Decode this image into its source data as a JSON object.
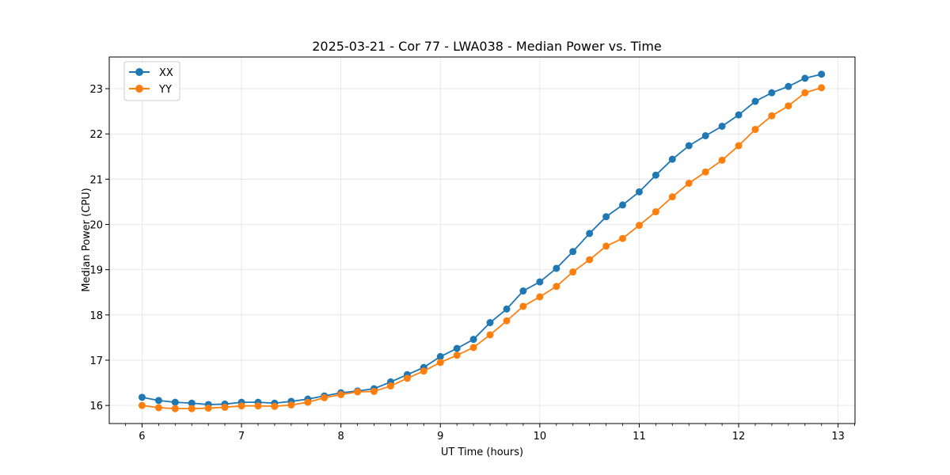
{
  "chart_data": {
    "type": "line",
    "title": "2025-03-21 - Cor 77 - LWA038 - Median Power vs. Time",
    "xlabel": "UT Time (hours)",
    "ylabel": "Median Power (CPU)",
    "xlim": [
      5.67,
      13.17
    ],
    "ylim": [
      15.6,
      23.7
    ],
    "xticks": [
      6,
      7,
      8,
      9,
      10,
      11,
      12,
      13
    ],
    "yticks": [
      16,
      17,
      18,
      19,
      20,
      21,
      22,
      23
    ],
    "grid": true,
    "legend_position": "top-left",
    "x": [
      6.0,
      6.167,
      6.333,
      6.5,
      6.667,
      6.833,
      7.0,
      7.167,
      7.333,
      7.5,
      7.667,
      7.833,
      8.0,
      8.167,
      8.333,
      8.5,
      8.667,
      8.833,
      9.0,
      9.167,
      9.333,
      9.5,
      9.667,
      9.833,
      10.0,
      10.167,
      10.333,
      10.5,
      10.667,
      10.833,
      11.0,
      11.167,
      11.333,
      11.5,
      11.667,
      11.833,
      12.0,
      12.167,
      12.333,
      12.5,
      12.667,
      12.833
    ],
    "series": [
      {
        "name": "XX",
        "color": "#1f77b4",
        "values": [
          16.18,
          16.11,
          16.07,
          16.05,
          16.02,
          16.03,
          16.07,
          16.07,
          16.05,
          16.09,
          16.14,
          16.21,
          16.28,
          16.32,
          16.37,
          16.52,
          16.68,
          16.84,
          17.08,
          17.26,
          17.46,
          17.83,
          18.13,
          18.53,
          18.73,
          19.03,
          19.4,
          19.8,
          20.17,
          20.43,
          20.72,
          21.09,
          21.44,
          21.74,
          21.96,
          22.17,
          22.42,
          22.72,
          22.91,
          23.05,
          23.23,
          23.32
        ]
      },
      {
        "name": "YY",
        "color": "#ff7f0e",
        "values": [
          16.0,
          15.95,
          15.93,
          15.93,
          15.94,
          15.96,
          15.99,
          15.99,
          15.98,
          16.01,
          16.07,
          16.17,
          16.24,
          16.3,
          16.31,
          16.43,
          16.6,
          16.76,
          16.95,
          17.11,
          17.28,
          17.56,
          17.87,
          18.19,
          18.4,
          18.63,
          18.95,
          19.22,
          19.52,
          19.69,
          19.98,
          20.28,
          20.61,
          20.91,
          21.16,
          21.42,
          21.74,
          22.1,
          22.4,
          22.62,
          22.91,
          23.02
        ]
      }
    ]
  }
}
